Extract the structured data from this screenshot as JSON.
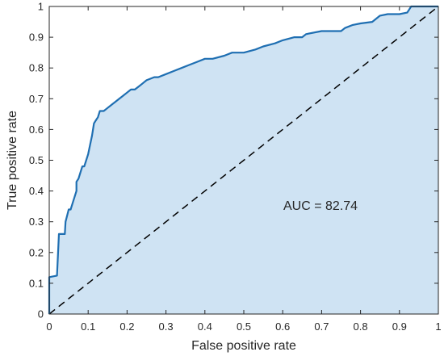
{
  "chart_data": {
    "type": "area",
    "xlabel": "False positive rate",
    "ylabel": "True positive rate",
    "xlim": [
      0,
      1
    ],
    "ylim": [
      0,
      1
    ],
    "grid": false,
    "x_ticks": [
      "0",
      "0.1",
      "0.2",
      "0.3",
      "0.4",
      "0.5",
      "0.6",
      "0.7",
      "0.8",
      "0.9",
      "1"
    ],
    "y_ticks": [
      "0",
      "0.1",
      "0.2",
      "0.3",
      "0.4",
      "0.5",
      "0.6",
      "0.7",
      "0.8",
      "0.9",
      "1"
    ],
    "annotation": "AUC = 82.74",
    "colors": {
      "curve": "#1f6fb2",
      "fill": "#cfe3f3",
      "diagonal": "#000000",
      "axis": "#262626"
    },
    "series": [
      {
        "x": [
          0,
          0,
          0.02,
          0.025,
          0.025,
          0.04,
          0.042,
          0.05,
          0.055,
          0.06,
          0.065,
          0.07,
          0.07,
          0.075,
          0.08,
          0.085,
          0.09,
          0.095,
          0.1,
          0.105,
          0.11,
          0.115,
          0.12,
          0.125,
          0.13,
          0.14,
          0.15,
          0.16,
          0.17,
          0.18,
          0.19,
          0.2,
          0.21,
          0.22,
          0.23,
          0.24,
          0.25,
          0.27,
          0.28,
          0.3,
          0.32,
          0.34,
          0.36,
          0.38,
          0.4,
          0.42,
          0.45,
          0.47,
          0.5,
          0.53,
          0.55,
          0.58,
          0.6,
          0.63,
          0.65,
          0.66,
          0.7,
          0.75,
          0.76,
          0.78,
          0.8,
          0.83,
          0.85,
          0.87,
          0.9,
          0.92,
          0.925,
          0.93,
          1
        ],
        "y": [
          0,
          0.12,
          0.125,
          0.26,
          0.26,
          0.26,
          0.3,
          0.34,
          0.34,
          0.36,
          0.38,
          0.4,
          0.43,
          0.44,
          0.46,
          0.48,
          0.48,
          0.5,
          0.52,
          0.55,
          0.58,
          0.62,
          0.63,
          0.64,
          0.66,
          0.66,
          0.67,
          0.68,
          0.69,
          0.7,
          0.71,
          0.72,
          0.73,
          0.73,
          0.74,
          0.75,
          0.76,
          0.77,
          0.77,
          0.78,
          0.79,
          0.8,
          0.81,
          0.82,
          0.83,
          0.83,
          0.84,
          0.85,
          0.85,
          0.86,
          0.87,
          0.88,
          0.89,
          0.9,
          0.9,
          0.91,
          0.92,
          0.92,
          0.93,
          0.94,
          0.945,
          0.95,
          0.97,
          0.975,
          0.975,
          0.98,
          0.99,
          1,
          1
        ]
      }
    ]
  }
}
